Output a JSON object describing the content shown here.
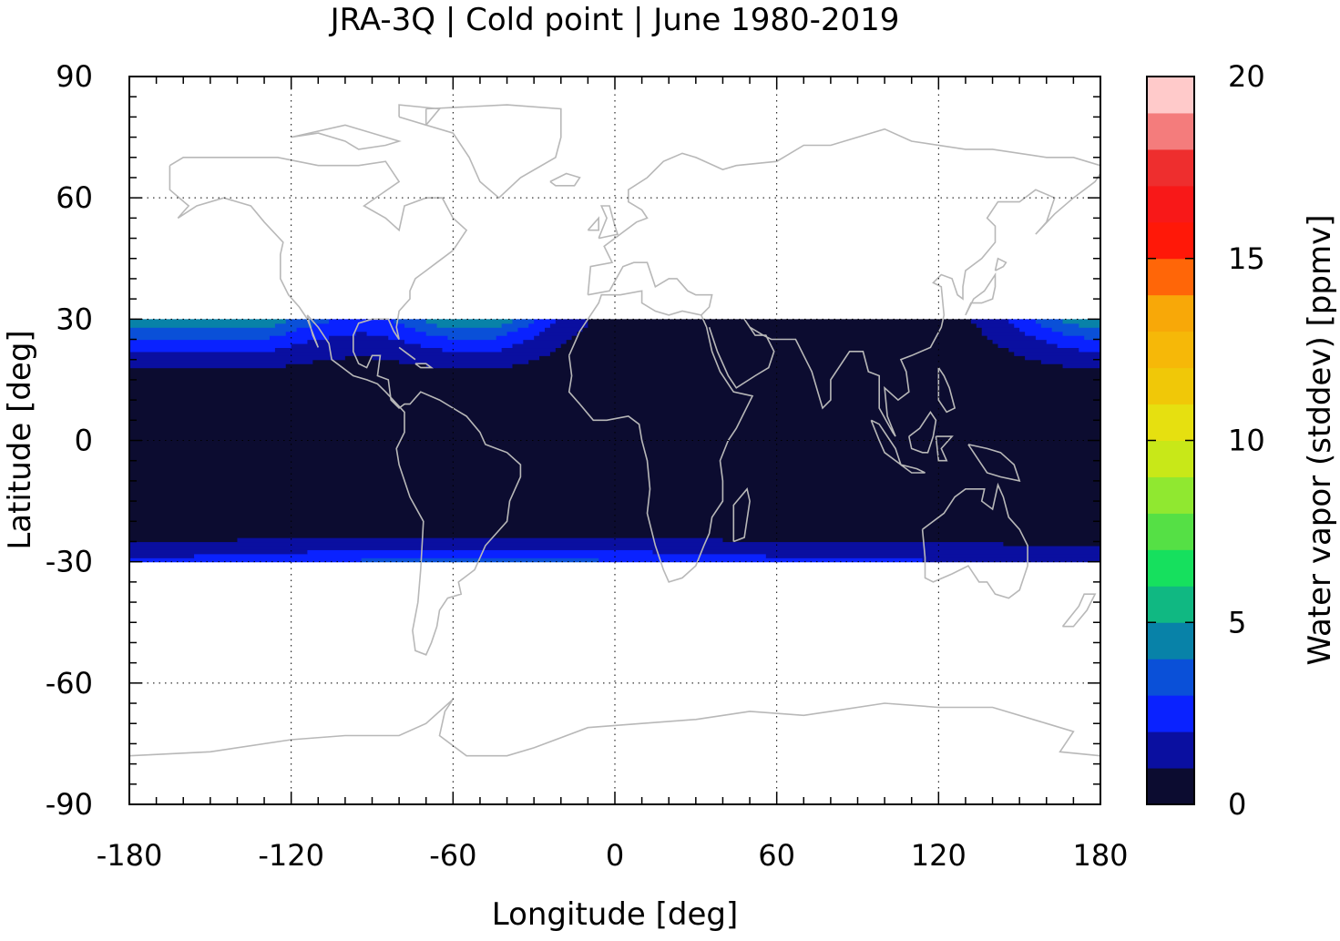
{
  "chart_data": {
    "type": "heatmap",
    "title": "JRA-3Q | Cold point | June 1980-2019",
    "xlabel": "Longitude [deg]",
    "ylabel": "Latitude [deg]",
    "xlim": [
      -180,
      180
    ],
    "ylim": [
      -90,
      90
    ],
    "x_ticks": [
      -180,
      -120,
      -60,
      0,
      60,
      120,
      180
    ],
    "y_ticks": [
      90,
      60,
      30,
      0,
      -30,
      -60,
      -90
    ],
    "grid": true,
    "data_extent_lat": [
      -30,
      30
    ],
    "colorbar": {
      "label": "Water vapor (stddev) [ppmv]",
      "range": [
        0,
        20
      ],
      "ticks": [
        0,
        5,
        10,
        15,
        20
      ],
      "step": 1,
      "colors": [
        "#0c0c30",
        "#0a0fa0",
        "#0a22ff",
        "#0a50d8",
        "#0882a8",
        "#10b882",
        "#16e05e",
        "#55e045",
        "#90e830",
        "#c8e818",
        "#e6e010",
        "#f0c808",
        "#f6b808",
        "#f8a808",
        "#ff6608",
        "#ff1808",
        "#f81818",
        "#ee2e2e",
        "#f47c7c",
        "#ffcaca"
      ]
    },
    "field_description": "Values mostly 0-1 ppmv across tropics; 1-4 ppmv near subtropical edges (north Pacific/Atlantic near 30N, south band near 30S)"
  }
}
